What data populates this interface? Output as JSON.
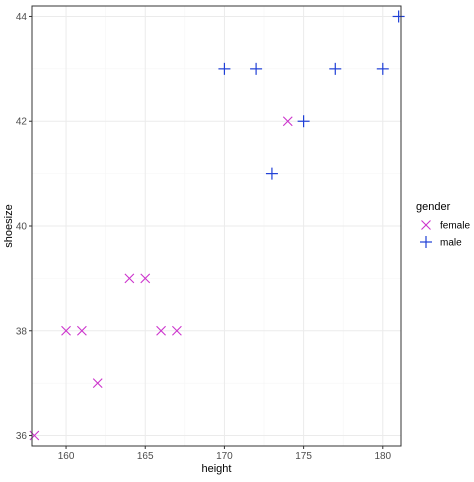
{
  "chart_data": {
    "type": "scatter",
    "xlabel": "height",
    "ylabel": "shoesize",
    "xlim": [
      157.85,
      181.15
    ],
    "ylim": [
      35.8,
      44.2
    ],
    "x_ticks": [
      160,
      165,
      170,
      175,
      180
    ],
    "y_ticks": [
      36,
      38,
      40,
      42,
      44
    ],
    "x_tick_labels": [
      "160",
      "165",
      "170",
      "175",
      "180"
    ],
    "y_tick_labels": [
      "36",
      "38",
      "40",
      "42",
      "44"
    ],
    "grid": true,
    "legend": {
      "title": "gender",
      "placement": "right"
    },
    "series": [
      {
        "name": "female",
        "marker": "cross",
        "color": "#cc33cc",
        "points": [
          {
            "x": 158,
            "y": 36
          },
          {
            "x": 160,
            "y": 38
          },
          {
            "x": 161,
            "y": 38
          },
          {
            "x": 162,
            "y": 37
          },
          {
            "x": 164,
            "y": 39
          },
          {
            "x": 165,
            "y": 39
          },
          {
            "x": 166,
            "y": 38
          },
          {
            "x": 167,
            "y": 38
          },
          {
            "x": 174,
            "y": 42
          }
        ]
      },
      {
        "name": "male",
        "marker": "plus",
        "color": "#1f3fd6",
        "points": [
          {
            "x": 170,
            "y": 43
          },
          {
            "x": 172,
            "y": 43
          },
          {
            "x": 173,
            "y": 41
          },
          {
            "x": 175,
            "y": 42
          },
          {
            "x": 177,
            "y": 43
          },
          {
            "x": 180,
            "y": 43
          },
          {
            "x": 181,
            "y": 44
          }
        ]
      }
    ],
    "colors": {
      "panel_border": "#333333",
      "grid_major": "#ebebeb",
      "grid_minor": "#f5f5f5"
    }
  }
}
